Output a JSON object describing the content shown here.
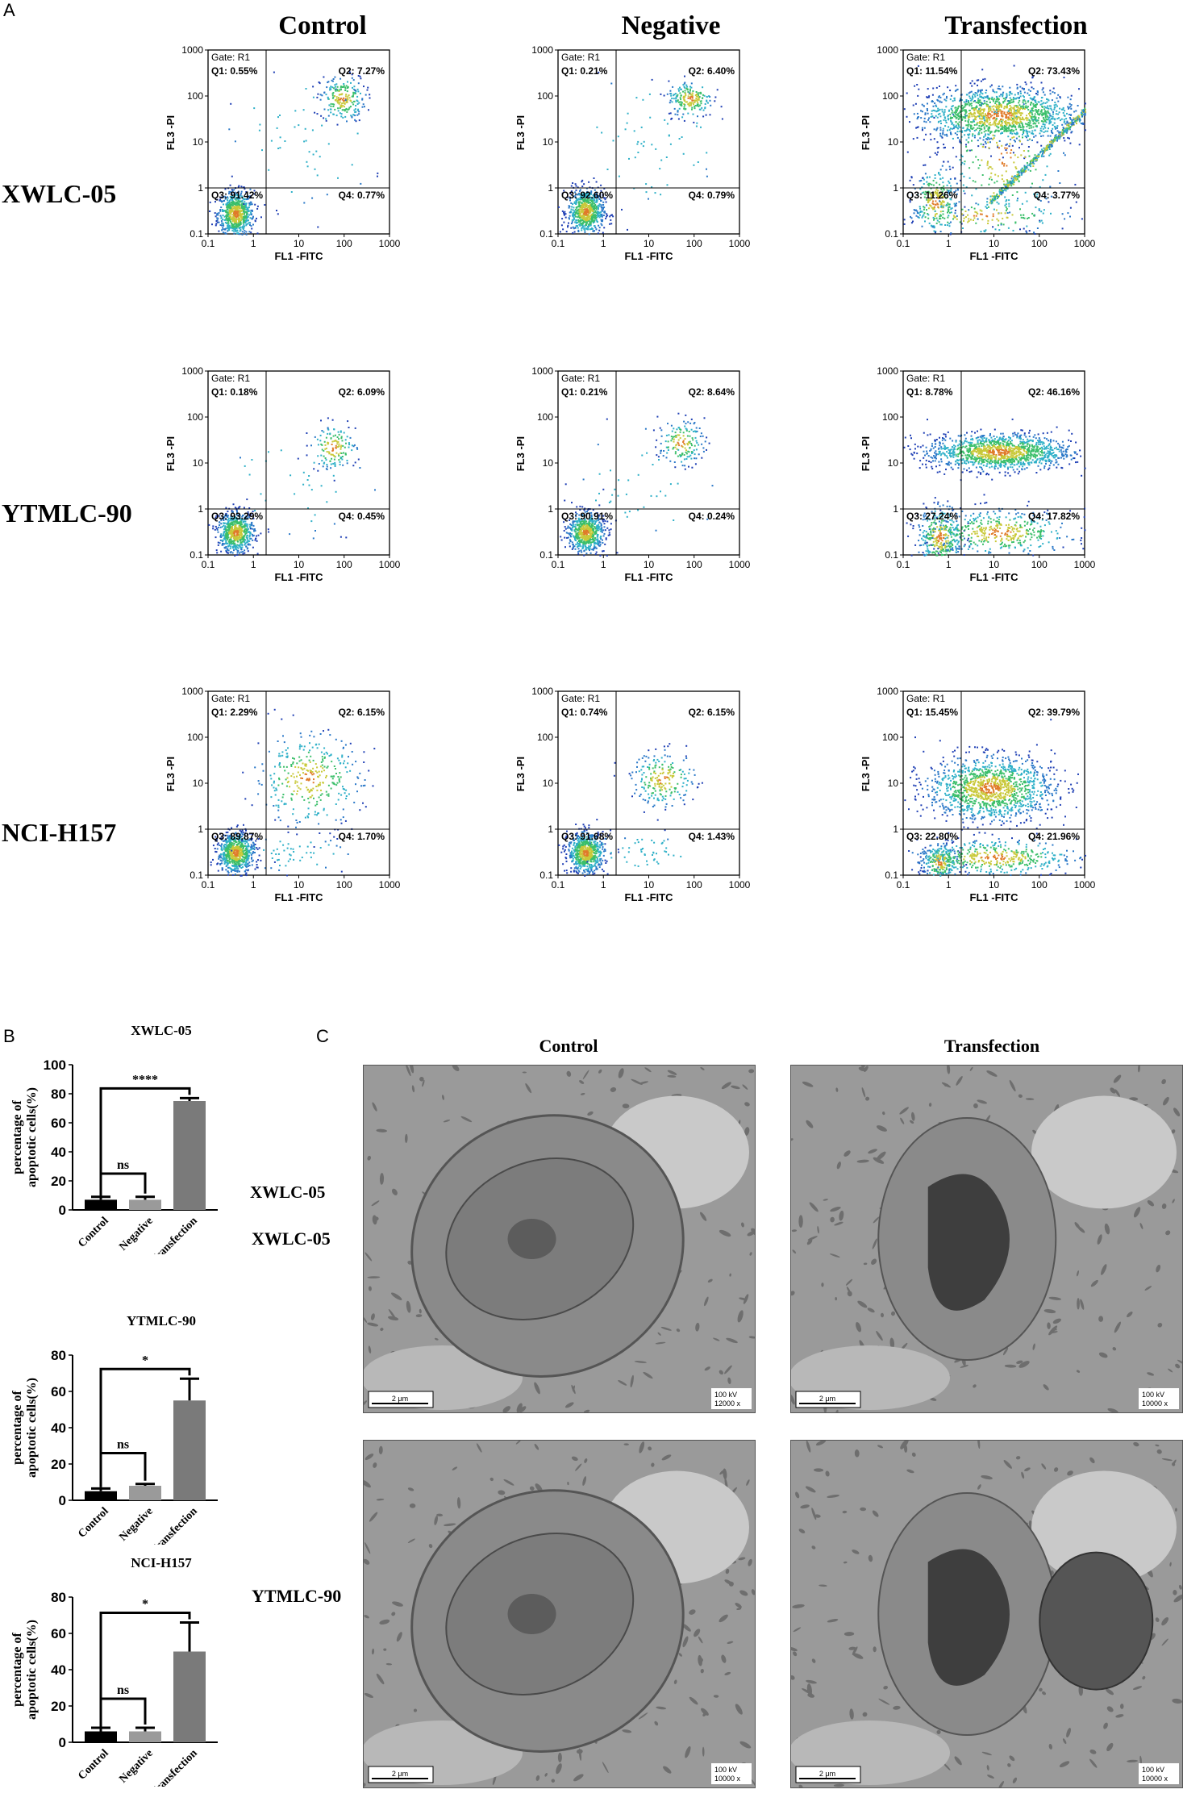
{
  "panel_labels": {
    "a": "A",
    "b": "B",
    "c": "C"
  },
  "flow": {
    "columns": [
      "Control",
      "Negative",
      "Transfection"
    ],
    "rows": [
      "XWLC-05",
      "YTMLC-90",
      "NCI-H157"
    ],
    "gate": "Gate: R1",
    "xlabel": "FL1  -FITC",
    "ylabel": "FL3 -PI",
    "ticks": [
      "0.1",
      "1",
      "10",
      "100",
      "1000"
    ],
    "plots": [
      [
        {
          "q1": "Q1: 0.55%",
          "q2": "Q2: 7.27%",
          "q3": "Q3: 91.42%",
          "q4": "Q4: 0.77%"
        },
        {
          "q1": "Q1: 0.21%",
          "q2": "Q2: 6.40%",
          "q3": "Q3: 92.60%",
          "q4": "Q4: 0.79%"
        },
        {
          "q1": "Q1: 11.54%",
          "q2": "Q2: 73.43%",
          "q3": "Q3: 11.26%",
          "q4": "Q4: 3.77%"
        }
      ],
      [
        {
          "q1": "Q1: 0.18%",
          "q2": "Q2: 6.09%",
          "q3": "Q3: 93.29%",
          "q4": "Q4: 0.45%"
        },
        {
          "q1": "Q1: 0.21%",
          "q2": "Q2: 8.64%",
          "q3": "Q3: 90.91%",
          "q4": "Q4: 0.24%"
        },
        {
          "q1": "Q1: 8.78%",
          "q2": "Q2: 46.16%",
          "q3": "Q3: 27.24%",
          "q4": "Q4: 17.82%"
        }
      ],
      [
        {
          "q1": "Q1: 2.29%",
          "q2": "Q2: 6.15%",
          "q3": "Q3: 89.87%",
          "q4": "Q4: 1.70%"
        },
        {
          "q1": "Q1: 0.74%",
          "q2": "Q2: 6.15%",
          "q3": "Q3: 91.68%",
          "q4": "Q4: 1.43%"
        },
        {
          "q1": "Q1: 15.45%",
          "q2": "Q2: 39.79%",
          "q3": "Q3: 22.80%",
          "q4": "Q4: 21.96%"
        }
      ]
    ]
  },
  "chart_data": [
    {
      "type": "bar",
      "title": "XWLC-05",
      "categories": [
        "Control",
        "Negative",
        "Transfection"
      ],
      "values": [
        7,
        7,
        75
      ],
      "errors": [
        2,
        2,
        2
      ],
      "ylabel": "percentage of apoptotic cells(%)",
      "ylim": [
        0,
        100
      ],
      "yticks": [
        "0",
        "20",
        "40",
        "60",
        "80",
        "100"
      ],
      "ns_label": "ns",
      "sig_label": "****",
      "side_label": "XWLC-05",
      "colors": [
        "#000000",
        "#9a9a9a",
        "#7a7a7a"
      ]
    },
    {
      "type": "bar",
      "title": "YTMLC-90",
      "categories": [
        "Control",
        "Negative",
        "Transfection"
      ],
      "values": [
        5,
        8,
        55
      ],
      "errors": [
        1.5,
        1,
        12
      ],
      "ylabel": "percentage of apoptotic cells(%)",
      "ylim": [
        0,
        80
      ],
      "yticks": [
        "0",
        "20",
        "40",
        "60",
        "80"
      ],
      "ns_label": "ns",
      "sig_label": "*",
      "side_label": "",
      "colors": [
        "#000000",
        "#9a9a9a",
        "#7a7a7a"
      ]
    },
    {
      "type": "bar",
      "title": "NCI-H157",
      "categories": [
        "Control",
        "Negative",
        "Transfection"
      ],
      "values": [
        6,
        6,
        50
      ],
      "errors": [
        2,
        2,
        16
      ],
      "ylabel": "percentage of apoptotic cells(%)",
      "ylim": [
        0,
        80
      ],
      "yticks": [
        "0",
        "20",
        "40",
        "60",
        "80"
      ],
      "ns_label": "ns",
      "sig_label": "*",
      "side_label": "",
      "colors": [
        "#000000",
        "#9a9a9a",
        "#7a7a7a"
      ]
    }
  ],
  "em": {
    "columns": [
      "Control",
      "Transfection"
    ],
    "rows": [
      "XWLC-05",
      "YTMLC-90"
    ],
    "scalebar": "2 μm",
    "images": [
      {
        "kv": "100 kV",
        "mag": "12000 x"
      },
      {
        "kv": "100 kV",
        "mag": "10000 x"
      },
      {
        "kv": "100 kV",
        "mag": "10000 x"
      },
      {
        "kv": "100 kV",
        "mag": "10000 x"
      }
    ]
  }
}
